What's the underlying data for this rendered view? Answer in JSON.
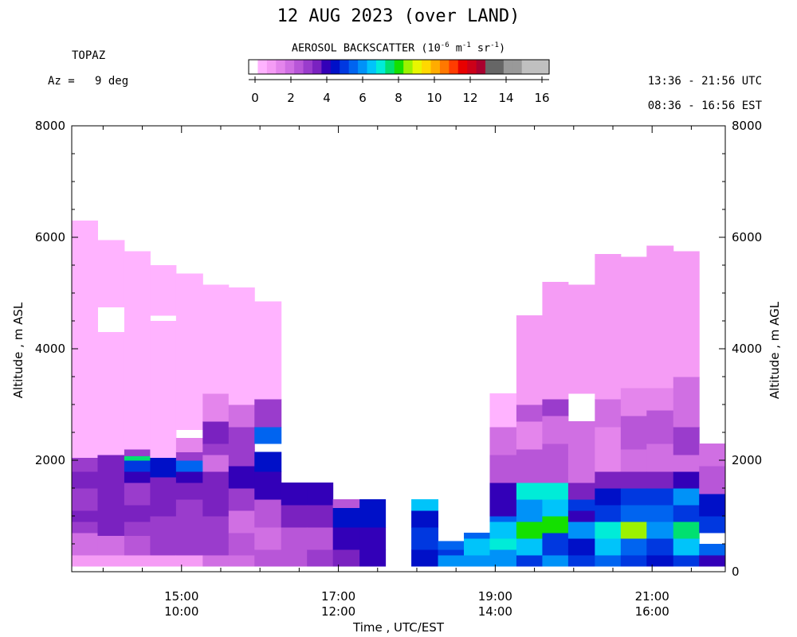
{
  "header": {
    "title": "12 AUG 2023 (over LAND)",
    "instrument": "TOPAZ",
    "azimuth": "Az =   9 deg",
    "utc_range": "13:36 - 21:56 UTC",
    "est_range": "08:36 - 16:56 EST",
    "colorbar_title_prefix": "AEROSOL BACKSCATTER (10",
    "colorbar_exp1": "-6",
    "colorbar_unit_m": " m",
    "colorbar_exp2": "-1",
    "colorbar_unit_sr": " sr",
    "colorbar_exp3": "-1",
    "colorbar_close": ")"
  },
  "colorbar": {
    "colors": [
      "#ffffff",
      "#ffb3ff",
      "#f59cf5",
      "#e485ec",
      "#d06fe3",
      "#b856d8",
      "#9a3ccc",
      "#7a22c0",
      "#3300b8",
      "#0010c8",
      "#0038e0",
      "#0064f0",
      "#0092f8",
      "#00c4fa",
      "#00ecd8",
      "#00e070",
      "#14e000",
      "#9cf200",
      "#e8f600",
      "#ffd800",
      "#ffac00",
      "#ff7800",
      "#ff3c00",
      "#e80000",
      "#cc0018",
      "#a8002e",
      "#666666",
      "#666666",
      "#999999",
      "#999999",
      "#c0c0c0",
      "#c0c0c0",
      "#c0c0c0"
    ],
    "tick_labels": [
      "0",
      "2",
      "4",
      "6",
      "8",
      "10",
      "12",
      "14",
      "16"
    ]
  },
  "chart_data": {
    "type": "heatmap",
    "title": "12 AUG 2023 (over LAND)",
    "xlabel": "Time , UTC/EST",
    "ylabel_left": "Altitude , m ASL",
    "ylabel_right": "Altitude , m AGL",
    "x_ticks_utc": [
      "15:00",
      "17:00",
      "19:00",
      "21:00"
    ],
    "x_ticks_est": [
      "10:00",
      "12:00",
      "14:00",
      "16:00"
    ],
    "x_tick_hours": [
      15,
      17,
      19,
      21
    ],
    "xlim_hours": [
      13.6,
      21.933
    ],
    "y_left_ticks": [
      "2000",
      "4000",
      "6000",
      "8000"
    ],
    "y_left_tick_values": [
      2000,
      4000,
      6000,
      8000
    ],
    "y_right_ticks": [
      "0",
      "2000",
      "4000",
      "6000",
      "8000"
    ],
    "y_right_tick_values": [
      0,
      2000,
      4000,
      6000,
      8000
    ],
    "ylim": [
      0,
      8000
    ],
    "colorbar_range": [
      0,
      16
    ],
    "profiles": [
      {
        "start": 13.6,
        "end": 13.93,
        "segs": [
          [
            100,
            300,
            1.1
          ],
          [
            300,
            700,
            2.4
          ],
          [
            700,
            900,
            3.3
          ],
          [
            900,
            1100,
            3.6
          ],
          [
            1100,
            1500,
            3.4
          ],
          [
            1500,
            1800,
            3.6
          ],
          [
            1800,
            2050,
            3.2
          ],
          [
            2050,
            4800,
            0.8
          ],
          [
            4800,
            5600,
            0.9
          ],
          [
            5600,
            5950,
            0.8
          ],
          [
            5950,
            6300,
            0.9
          ]
        ]
      },
      {
        "start": 13.93,
        "end": 14.27,
        "segs": [
          [
            100,
            300,
            1.1
          ],
          [
            300,
            650,
            2.2
          ],
          [
            650,
            1000,
            3.5
          ],
          [
            1000,
            1300,
            3.9
          ],
          [
            1300,
            1700,
            3.5
          ],
          [
            1700,
            2100,
            3.5
          ],
          [
            2100,
            4300,
            0.8
          ],
          [
            4750,
            5950,
            0.9
          ]
        ]
      },
      {
        "start": 14.27,
        "end": 14.6,
        "segs": [
          [
            100,
            300,
            1.3
          ],
          [
            300,
            650,
            2.6
          ],
          [
            650,
            900,
            3.1
          ],
          [
            900,
            1200,
            3.6
          ],
          [
            1200,
            1600,
            3.3
          ],
          [
            1600,
            1800,
            4.3
          ],
          [
            1800,
            2000,
            5.0
          ],
          [
            2000,
            2080,
            7.5
          ],
          [
            2080,
            2200,
            3.1
          ],
          [
            2200,
            4650,
            0.8
          ],
          [
            4650,
            5750,
            0.9
          ]
        ]
      },
      {
        "start": 14.6,
        "end": 14.93,
        "segs": [
          [
            100,
            300,
            1.2
          ],
          [
            300,
            700,
            3.2
          ],
          [
            700,
            1000,
            3.0
          ],
          [
            1000,
            1300,
            3.7
          ],
          [
            1300,
            1700,
            3.5
          ],
          [
            1700,
            2050,
            4.6
          ],
          [
            2050,
            2600,
            0.8
          ],
          [
            2600,
            4500,
            0.8
          ],
          [
            4600,
            5500,
            0.9
          ]
        ]
      },
      {
        "start": 14.93,
        "end": 15.27,
        "segs": [
          [
            100,
            300,
            1.4
          ],
          [
            300,
            700,
            3.3
          ],
          [
            700,
            1000,
            3.0
          ],
          [
            1000,
            1300,
            3.4
          ],
          [
            1300,
            1600,
            3.7
          ],
          [
            1600,
            1800,
            4.4
          ],
          [
            1800,
            2000,
            5.5
          ],
          [
            2000,
            2150,
            3.0
          ],
          [
            2150,
            2400,
            1.6
          ],
          [
            2550,
            5350,
            0.8
          ]
        ]
      },
      {
        "start": 15.27,
        "end": 15.6,
        "segs": [
          [
            100,
            300,
            2.2
          ],
          [
            300,
            700,
            3.2
          ],
          [
            700,
            1000,
            3.0
          ],
          [
            1000,
            1400,
            3.6
          ],
          [
            1400,
            1800,
            3.8
          ],
          [
            1800,
            2100,
            2.0
          ],
          [
            2100,
            2300,
            3.0
          ],
          [
            2300,
            2700,
            3.5
          ],
          [
            2700,
            3200,
            1.5
          ],
          [
            3200,
            5150,
            0.8
          ]
        ]
      },
      {
        "start": 15.6,
        "end": 15.93,
        "segs": [
          [
            100,
            300,
            2.1
          ],
          [
            300,
            700,
            2.6
          ],
          [
            700,
            1100,
            2.4
          ],
          [
            1100,
            1500,
            3.2
          ],
          [
            1500,
            1900,
            4.3
          ],
          [
            1900,
            2200,
            3.1
          ],
          [
            2200,
            2600,
            3.1
          ],
          [
            2600,
            3000,
            2.2
          ],
          [
            3000,
            5100,
            0.8
          ]
        ]
      },
      {
        "start": 15.93,
        "end": 16.27,
        "segs": [
          [
            100,
            400,
            2.8
          ],
          [
            400,
            800,
            2.4
          ],
          [
            800,
            1300,
            2.7
          ],
          [
            1300,
            1800,
            4.2
          ],
          [
            1800,
            2150,
            4.8
          ],
          [
            2300,
            2600,
            5.6
          ],
          [
            2600,
            3100,
            3.2
          ],
          [
            3100,
            4850,
            0.8
          ]
        ]
      },
      {
        "start": 16.27,
        "end": 16.6,
        "segs": [
          [
            100,
            400,
            2.8
          ],
          [
            400,
            800,
            2.5
          ],
          [
            800,
            1200,
            3.5
          ],
          [
            1200,
            1600,
            4.3
          ]
        ]
      },
      {
        "start": 16.6,
        "end": 16.93,
        "segs": [
          [
            100,
            400,
            3.2
          ],
          [
            400,
            800,
            2.8
          ],
          [
            800,
            1200,
            3.6
          ],
          [
            1200,
            1600,
            4.4
          ]
        ]
      },
      {
        "start": 16.93,
        "end": 17.27,
        "segs": [
          [
            100,
            400,
            3.7
          ],
          [
            400,
            800,
            4.0
          ],
          [
            800,
            1150,
            4.7
          ],
          [
            1150,
            1300,
            2.6
          ]
        ]
      },
      {
        "start": 17.27,
        "end": 17.6,
        "segs": [
          [
            100,
            400,
            4.2
          ],
          [
            400,
            800,
            4.3
          ],
          [
            800,
            1300,
            4.8
          ]
        ]
      },
      {
        "start": 17.93,
        "end": 18.27,
        "segs": [
          [
            100,
            400,
            4.9
          ],
          [
            400,
            800,
            5.0
          ],
          [
            800,
            1100,
            4.9
          ],
          [
            1100,
            1300,
            6.8
          ]
        ]
      },
      {
        "start": 18.27,
        "end": 18.6,
        "segs": [
          [
            100,
            300,
            6.1
          ],
          [
            300,
            400,
            5.4
          ],
          [
            400,
            550,
            5.8
          ]
        ]
      },
      {
        "start": 18.6,
        "end": 18.93,
        "segs": [
          [
            100,
            300,
            6.2
          ],
          [
            300,
            600,
            6.8
          ],
          [
            600,
            700,
            5.5
          ]
        ]
      },
      {
        "start": 18.93,
        "end": 19.27,
        "segs": [
          [
            100,
            400,
            6.0
          ],
          [
            400,
            600,
            7.4
          ],
          [
            600,
            900,
            6.6
          ],
          [
            900,
            1000,
            5.6
          ],
          [
            1000,
            1600,
            4.4
          ],
          [
            1600,
            2100,
            2.9
          ],
          [
            2100,
            2600,
            2.4
          ],
          [
            2600,
            3200,
            0.8
          ]
        ]
      },
      {
        "start": 19.27,
        "end": 19.6,
        "segs": [
          [
            100,
            300,
            5.2
          ],
          [
            300,
            600,
            6.7
          ],
          [
            600,
            900,
            8.0
          ],
          [
            900,
            1300,
            6.2
          ],
          [
            1300,
            1600,
            7.2
          ],
          [
            1600,
            2200,
            2.8
          ],
          [
            2200,
            2700,
            1.9
          ],
          [
            2700,
            3000,
            2.6
          ],
          [
            3000,
            4600,
            1.2
          ]
        ]
      },
      {
        "start": 19.6,
        "end": 19.93,
        "segs": [
          [
            100,
            300,
            6.0
          ],
          [
            300,
            700,
            5.4
          ],
          [
            700,
            1000,
            8.4
          ],
          [
            1000,
            1300,
            6.5
          ],
          [
            1300,
            1600,
            7.2
          ],
          [
            1600,
            2300,
            2.7
          ],
          [
            2300,
            2800,
            2.2
          ],
          [
            2800,
            3100,
            3.2
          ],
          [
            3100,
            5200,
            1.1
          ]
        ]
      },
      {
        "start": 19.93,
        "end": 20.27,
        "segs": [
          [
            100,
            300,
            5.4
          ],
          [
            300,
            600,
            4.9
          ],
          [
            600,
            900,
            6.2
          ],
          [
            900,
            1100,
            4.3
          ],
          [
            1100,
            1300,
            5.0
          ],
          [
            1300,
            1600,
            3.8
          ],
          [
            1600,
            2700,
            2.1
          ],
          [
            3200,
            5150,
            1.0
          ]
        ]
      },
      {
        "start": 20.27,
        "end": 20.6,
        "segs": [
          [
            100,
            300,
            5.8
          ],
          [
            300,
            600,
            6.9
          ],
          [
            600,
            900,
            7.1
          ],
          [
            900,
            1200,
            5.3
          ],
          [
            1200,
            1500,
            4.6
          ],
          [
            1500,
            1800,
            3.5
          ],
          [
            1800,
            2600,
            1.7
          ],
          [
            2600,
            3100,
            2.2
          ],
          [
            3100,
            5700,
            1.0
          ]
        ]
      },
      {
        "start": 20.6,
        "end": 20.93,
        "segs": [
          [
            100,
            300,
            5.2
          ],
          [
            300,
            600,
            5.6
          ],
          [
            600,
            900,
            8.8
          ],
          [
            900,
            1200,
            5.9
          ],
          [
            1200,
            1500,
            5.3
          ],
          [
            1500,
            1800,
            3.6
          ],
          [
            1800,
            2200,
            2.3
          ],
          [
            2200,
            2800,
            2.8
          ],
          [
            2800,
            3300,
            1.9
          ],
          [
            3300,
            5650,
            1.1
          ]
        ]
      },
      {
        "start": 20.93,
        "end": 21.27,
        "segs": [
          [
            100,
            300,
            4.8
          ],
          [
            300,
            600,
            5.0
          ],
          [
            600,
            900,
            6.3
          ],
          [
            900,
            1200,
            5.7
          ],
          [
            1200,
            1500,
            5.1
          ],
          [
            1500,
            1800,
            3.9
          ],
          [
            1800,
            2300,
            2.4
          ],
          [
            2300,
            2900,
            2.8
          ],
          [
            2900,
            3300,
            1.8
          ],
          [
            3300,
            5850,
            1.1
          ]
        ]
      },
      {
        "start": 21.27,
        "end": 21.6,
        "segs": [
          [
            100,
            300,
            5.1
          ],
          [
            300,
            600,
            6.5
          ],
          [
            600,
            900,
            7.7
          ],
          [
            900,
            1200,
            5.2
          ],
          [
            1200,
            1500,
            6.0
          ],
          [
            1500,
            1800,
            4.4
          ],
          [
            1800,
            2100,
            2.2
          ],
          [
            2100,
            2600,
            3.0
          ],
          [
            2600,
            3500,
            2.4
          ],
          [
            3500,
            5750,
            1.1
          ]
        ]
      },
      {
        "start": 21.6,
        "end": 21.93,
        "segs": [
          [
            100,
            300,
            4.1
          ],
          [
            300,
            500,
            5.5
          ],
          [
            700,
            1000,
            5.1
          ],
          [
            1000,
            1400,
            4.8
          ],
          [
            1400,
            1900,
            2.7
          ],
          [
            1900,
            2300,
            2.1
          ]
        ]
      }
    ]
  }
}
